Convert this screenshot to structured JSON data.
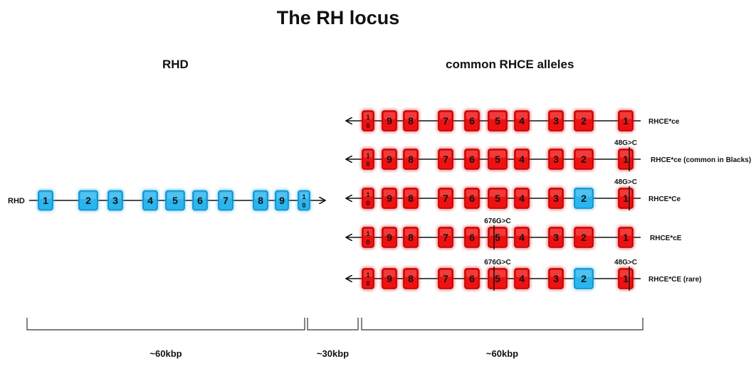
{
  "title": "The RH locus",
  "rhd": {
    "heading": "RHD",
    "gene_label": "RHD",
    "exons": [
      "1",
      "2",
      "3",
      "4",
      "5",
      "6",
      "7",
      "8",
      "9",
      "10"
    ],
    "size_label": "~60kbp"
  },
  "rhce": {
    "heading": "common RHCE alleles",
    "size_label": "~60kbp",
    "exons": [
      "10",
      "9",
      "8",
      "7",
      "6",
      "5",
      "4",
      "3",
      "2",
      "1"
    ],
    "alleles": [
      {
        "name": "RHCE*ce",
        "blue_exons": [],
        "marks": []
      },
      {
        "name": "RHCE*ce (common in Blacks)",
        "blue_exons": [],
        "marks": [
          {
            "exon": "1",
            "label": "48G>C"
          }
        ]
      },
      {
        "name": "RHCE*Ce",
        "blue_exons": [
          "2"
        ],
        "marks": [
          {
            "exon": "1",
            "label": "48G>C"
          }
        ]
      },
      {
        "name": "RHCE*cE",
        "blue_exons": [],
        "marks": [
          {
            "exon": "5",
            "label": "676G>C"
          }
        ]
      },
      {
        "name": "RHCE*CE (rare)",
        "blue_exons": [
          "2"
        ],
        "marks": [
          {
            "exon": "5",
            "label": "676G>C"
          },
          {
            "exon": "1",
            "label": "48G>C"
          }
        ]
      }
    ]
  },
  "spacer": {
    "size_label": "~30kbp"
  },
  "colors": {
    "rhd_exon": "#29b5ee",
    "rhd_exon_border": "#1289c4",
    "rhce_exon": "#ee1111",
    "rhce_exon_border": "#b80000",
    "line": "#111111"
  }
}
